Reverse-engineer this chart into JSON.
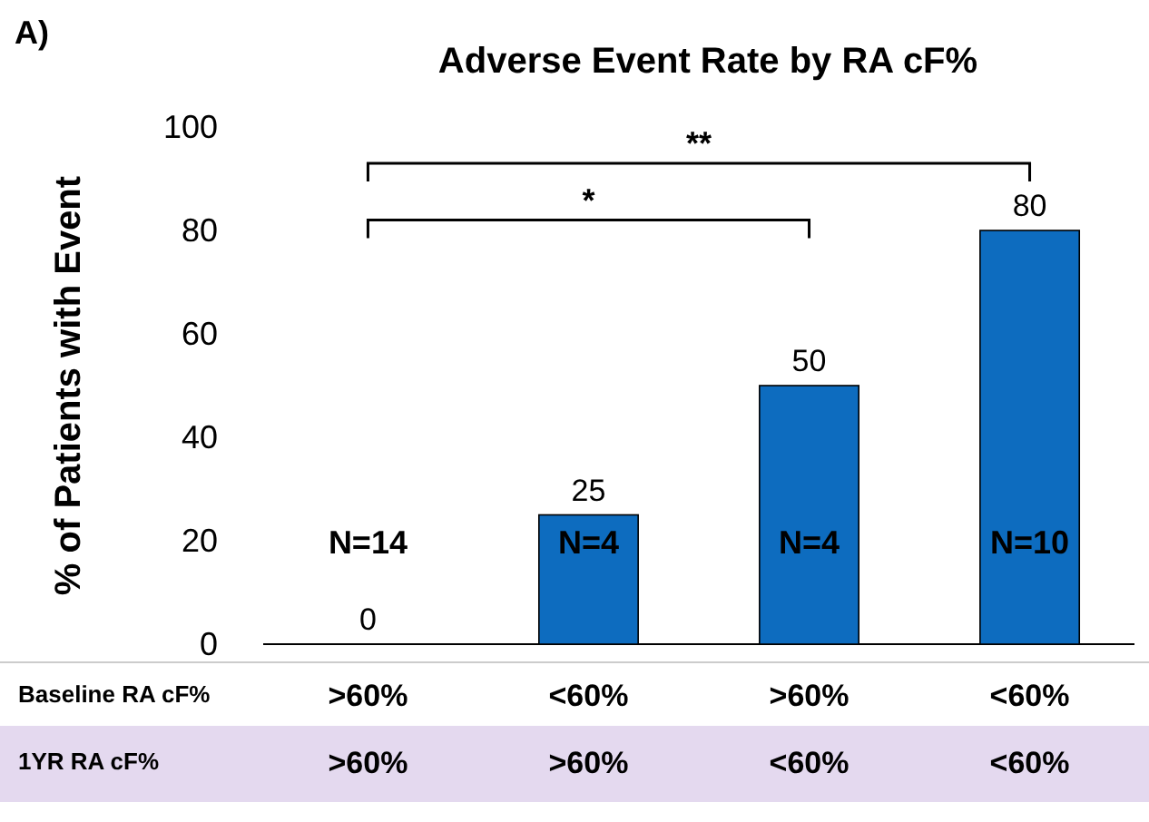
{
  "chart_data": {
    "type": "bar",
    "title": "Adverse Event Rate by RA cF%",
    "ylabel": "% of Patients with Event",
    "categories": [
      ">60%\n>60%",
      "<60%\n>60%",
      ">60%\n<60%",
      "<60%\n<60%"
    ],
    "values": [
      0,
      25,
      50,
      80
    ],
    "color": "#0d6cbf",
    "data_labels": true,
    "ylim": [
      0,
      100
    ],
    "yticks": [
      0,
      20,
      40,
      60,
      80,
      100
    ],
    "grid": false,
    "annotations": [
      "A)",
      "Baseline RA cF%",
      "1YR RA cF%",
      "*",
      "**",
      "N=14",
      "N=4",
      "N=4",
      "N=10"
    ]
  }
}
